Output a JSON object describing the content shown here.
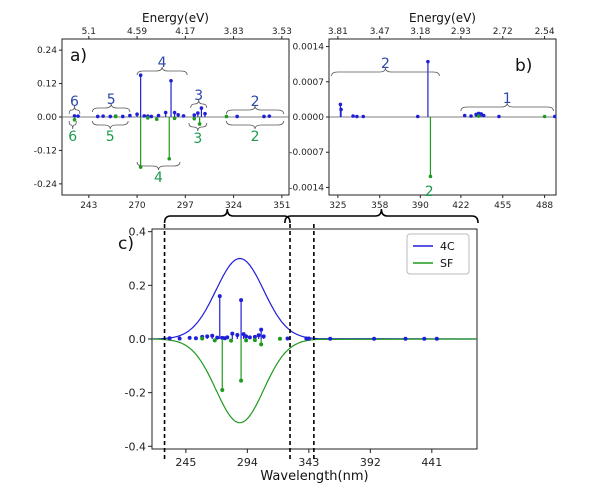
{
  "chart_data": [
    {
      "type": "stem",
      "panel_label": "a)",
      "top_axis_label": "Energy(eV)",
      "top_ticks": [
        {
          "label": "5.1",
          "wavelength": 243
        },
        {
          "label": "4.59",
          "wavelength": 270
        },
        {
          "label": "4.17",
          "wavelength": 297
        },
        {
          "label": "3.83",
          "wavelength": 324
        },
        {
          "label": "3.53",
          "wavelength": 351
        }
      ],
      "xticks": [
        "243",
        "270",
        "297",
        "324",
        "351"
      ],
      "xlim": [
        228,
        355
      ],
      "yticks": [
        "0.24",
        "0.12",
        "0.00",
        "-0.12",
        "-0.24"
      ],
      "ylim": [
        -0.28,
        0.28
      ],
      "colors": {
        "4C": "#1f1fd8",
        "SF": "#1e9a1e"
      },
      "groups_4C": [
        {
          "label": "6",
          "from": 232,
          "to": 238
        },
        {
          "label": "5",
          "from": 245,
          "to": 266
        },
        {
          "label": "4",
          "from": 270,
          "to": 298
        },
        {
          "label": "3",
          "from": 300,
          "to": 309
        },
        {
          "label": "2",
          "from": 320,
          "to": 352
        }
      ],
      "groups_SF": [
        {
          "label": "6",
          "from": 232,
          "to": 236
        },
        {
          "label": "5",
          "from": 245,
          "to": 265
        },
        {
          "label": "4",
          "from": 270,
          "to": 294
        },
        {
          "label": "3",
          "from": 299,
          "to": 309
        },
        {
          "label": "2",
          "from": 320,
          "to": 352
        }
      ],
      "series": [
        {
          "name": "4C",
          "x": [
            235,
            237,
            248,
            251,
            255,
            258,
            262,
            266,
            270,
            272,
            274,
            276,
            278,
            282,
            286,
            289,
            291,
            293,
            296,
            302,
            304,
            306,
            308,
            326,
            341,
            344
          ],
          "y": [
            0.004,
            0.003,
            0.002,
            0.003,
            0.002,
            0.003,
            0.002,
            0.005,
            0.01,
            0.15,
            0.004,
            0.003,
            0.002,
            0.005,
            0.016,
            0.13,
            0.016,
            0.008,
            0.004,
            0.007,
            0.014,
            0.032,
            0.012,
            0.002,
            0.002,
            0.003
          ]
        },
        {
          "name": "SF",
          "x": [
            235,
            258,
            272,
            276,
            281,
            288,
            291,
            302,
            305,
            320
          ],
          "y": [
            -0.01,
            0.002,
            -0.18,
            -0.003,
            -0.008,
            -0.15,
            -0.005,
            -0.006,
            -0.025,
            0.002
          ]
        }
      ]
    },
    {
      "type": "stem",
      "panel_label": "b)",
      "top_axis_label": "Energy(eV)",
      "top_ticks": [
        {
          "label": "3.81",
          "wavelength": 325
        },
        {
          "label": "3.47",
          "wavelength": 358
        },
        {
          "label": "3.18",
          "wavelength": 390
        },
        {
          "label": "2.93",
          "wavelength": 422
        },
        {
          "label": "2.72",
          "wavelength": 455
        },
        {
          "label": "2.54",
          "wavelength": 488
        }
      ],
      "xticks": [
        "325",
        "358",
        "390",
        "422",
        "455",
        "488"
      ],
      "xlim": [
        318,
        497
      ],
      "yticks": [
        "0.0014",
        "0.0007",
        "0.0000",
        "-0.0007",
        "-0.0014"
      ],
      "ylim": [
        -0.00155,
        0.00155
      ],
      "groups_4C": [
        {
          "label": "2",
          "from": 320,
          "to": 405
        },
        {
          "label": "1",
          "from": 422,
          "to": 495
        }
      ],
      "groups_SF": [
        {
          "label": "2",
          "from": 397,
          "to": 397
        }
      ],
      "series": [
        {
          "name": "4C",
          "x": [
            327,
            327.5,
            337,
            340,
            345,
            388,
            396,
            425,
            430,
            434,
            436,
            438,
            440,
            452,
            496
          ],
          "y": [
            0.00025,
            0.00015,
            2e-05,
            1e-05,
            1e-05,
            1e-05,
            0.0011,
            3e-05,
            2e-05,
            5e-05,
            7e-05,
            6e-05,
            3e-05,
            1e-05,
            1e-05
          ]
        },
        {
          "name": "SF",
          "x": [
            398,
            436,
            488
          ],
          "y": [
            -0.00118,
            2e-05,
            1e-05
          ]
        }
      ]
    },
    {
      "type": "stem+line",
      "panel_label": "c)",
      "xlabel": "Wavelength(nm)",
      "xticks": [
        "245",
        "294",
        "343",
        "392",
        "441"
      ],
      "xlim": [
        218,
        477
      ],
      "yticks": [
        "0.4",
        "0.2",
        "0.0",
        "-0.2",
        "-0.4"
      ],
      "ylim": [
        -0.41,
        0.41
      ],
      "legend": {
        "position": "top-right",
        "entries": [
          "4C",
          "SF"
        ]
      },
      "envelope": {
        "center": 288,
        "sigma": 19,
        "amp_4C": 0.3,
        "amp_SF": -0.312
      },
      "dashed_x": [
        228,
        328,
        347
      ],
      "series": [
        {
          "name": "4C",
          "x": [
            232,
            240,
            248,
            253,
            258,
            262,
            266,
            270,
            272,
            274,
            276,
            278,
            282,
            286,
            289,
            291,
            293,
            296,
            300,
            303,
            305,
            307,
            326,
            341,
            343,
            360,
            395,
            420,
            435,
            445
          ],
          "y": [
            0.003,
            0.002,
            0.004,
            0.003,
            0.008,
            0.01,
            0.012,
            0.005,
            0.16,
            0.004,
            0.003,
            0.006,
            0.02,
            0.015,
            0.145,
            0.018,
            0.01,
            0.006,
            0.008,
            0.014,
            0.035,
            0.01,
            0.002,
            0.002,
            0.002,
            0.001,
            0.001,
            0.001,
            0.001,
            0.001
          ]
        },
        {
          "name": "SF",
          "x": [
            258,
            268,
            274,
            281,
            289,
            293,
            300,
            305,
            320
          ],
          "y": [
            0.002,
            -0.005,
            -0.19,
            -0.006,
            -0.155,
            -0.005,
            -0.004,
            -0.02,
            0.001
          ]
        }
      ]
    }
  ]
}
